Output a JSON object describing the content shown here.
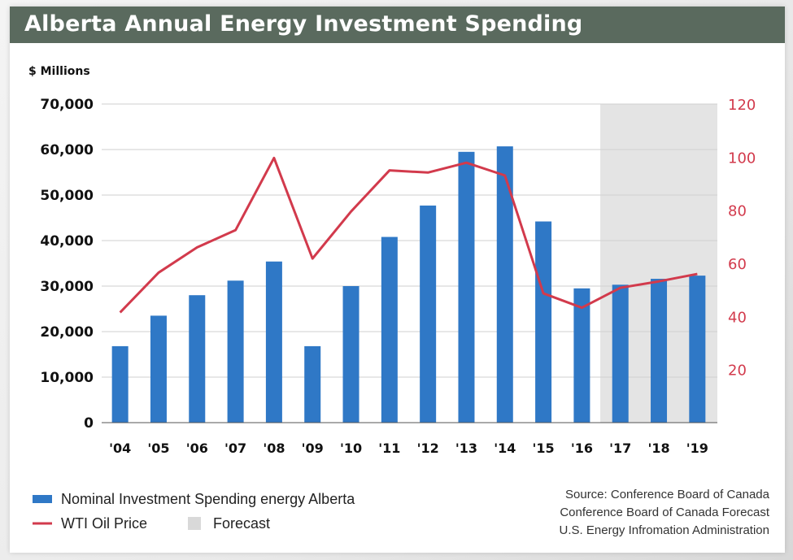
{
  "title": "Alberta Annual Energy Investment Spending",
  "colors": {
    "title_bar": "#5a6a5e",
    "bar": "#2f78c6",
    "line": "#d23a4c",
    "forecast": "#e4e4e4"
  },
  "chart_data": {
    "type": "bar",
    "title": "Alberta Annual Energy Investment Spending",
    "y_unit_label": "$ Millions",
    "categories": [
      "'04",
      "'05",
      "'06",
      "'07",
      "'08",
      "'09",
      "'10",
      "'11",
      "'12",
      "'13",
      "'14",
      "'15",
      "'16",
      "'17",
      "'18",
      "'19"
    ],
    "ylim": [
      0,
      70000
    ],
    "yticks": [
      0,
      10000,
      20000,
      30000,
      40000,
      50000,
      60000,
      70000
    ],
    "ytick_labels": [
      "0",
      "10,000",
      "20,000",
      "30,000",
      "40,000",
      "50,000",
      "60,000",
      "70,000"
    ],
    "y2lim": [
      0,
      120
    ],
    "y2ticks": [
      20,
      40,
      60,
      80,
      100,
      120
    ],
    "y2tick_labels": [
      "20",
      "40",
      "60",
      "80",
      "100",
      "120"
    ],
    "grid": true,
    "forecast_categories": [
      "'17",
      "'18",
      "'19"
    ],
    "series": [
      {
        "name": "Nominal Investment Spending energy Alberta",
        "type": "bar",
        "axis": "left",
        "values": [
          16800,
          23500,
          28000,
          31200,
          35400,
          16800,
          30000,
          40800,
          47700,
          59500,
          60700,
          44200,
          29500,
          30300,
          31600,
          32300
        ]
      },
      {
        "name": "WTI Oil Price",
        "type": "line",
        "axis": "right",
        "values": [
          41.5,
          56.5,
          66,
          72.5,
          99.7,
          61.8,
          79.5,
          95,
          94.2,
          97.9,
          93.1,
          48.7,
          43.3,
          50.8,
          53.2,
          56
        ]
      }
    ],
    "legend": {
      "placement": "bottom-left",
      "items": [
        {
          "label": "Nominal Investment Spending energy Alberta",
          "kind": "bar"
        },
        {
          "label": "WTI Oil Price",
          "kind": "line"
        },
        {
          "label": "Forecast",
          "kind": "forecast"
        }
      ]
    },
    "source_lines": [
      "Source: Conference Board of Canada",
      "Conference Board of Canada Forecast",
      "U.S. Energy Infromation Administration"
    ]
  }
}
